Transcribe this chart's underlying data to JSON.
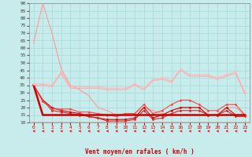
{
  "xlabel": "Vent moyen/en rafales ( km/h )",
  "xlim": [
    -0.5,
    23.5
  ],
  "ylim": [
    10,
    90
  ],
  "yticks": [
    10,
    15,
    20,
    25,
    30,
    35,
    40,
    45,
    50,
    55,
    60,
    65,
    70,
    75,
    80,
    85,
    90
  ],
  "xticks": [
    0,
    1,
    2,
    3,
    4,
    5,
    6,
    7,
    8,
    9,
    10,
    11,
    12,
    13,
    14,
    15,
    16,
    17,
    18,
    19,
    20,
    21,
    22,
    23
  ],
  "background_color": "#c8ecec",
  "grid_color": "#aadddd",
  "lines": [
    {
      "x": [
        0,
        1,
        2,
        3,
        4,
        5,
        6,
        7,
        8,
        9,
        10,
        11,
        12,
        13,
        14,
        15,
        16,
        17,
        18,
        19,
        20,
        21,
        22,
        23
      ],
      "y": [
        63,
        90,
        70,
        46,
        35,
        32,
        28,
        20,
        18,
        15,
        16,
        16,
        20,
        18,
        16,
        15,
        20,
        20,
        20,
        15,
        15,
        20,
        20,
        15
      ],
      "color": "#ff9999",
      "lw": 0.8,
      "marker": null,
      "ms": 0
    },
    {
      "x": [
        0,
        1,
        2,
        3,
        4,
        5,
        6,
        7,
        8,
        9,
        10,
        11,
        12,
        13,
        14,
        15,
        16,
        17,
        18,
        19,
        20,
        21,
        22,
        23
      ],
      "y": [
        35,
        25,
        20,
        18,
        17,
        16,
        14,
        13,
        12,
        12,
        12,
        13,
        20,
        13,
        15,
        18,
        20,
        20,
        20,
        15,
        15,
        20,
        15,
        15
      ],
      "color": "#cc0000",
      "lw": 0.8,
      "marker": "D",
      "ms": 1.5
    },
    {
      "x": [
        0,
        1,
        2,
        3,
        4,
        5,
        6,
        7,
        8,
        9,
        10,
        11,
        12,
        13,
        14,
        15,
        16,
        17,
        18,
        19,
        20,
        21,
        22,
        23
      ],
      "y": [
        35,
        25,
        18,
        17,
        16,
        15,
        14,
        13,
        11,
        11,
        11,
        12,
        18,
        12,
        13,
        16,
        18,
        18,
        18,
        15,
        15,
        18,
        14,
        14
      ],
      "color": "#dd2222",
      "lw": 0.8,
      "marker": "D",
      "ms": 1.5
    },
    {
      "x": [
        0,
        1,
        2,
        3,
        4,
        5,
        6,
        7,
        8,
        9,
        10,
        11,
        12,
        13,
        14,
        15,
        16,
        17,
        18,
        19,
        20,
        21,
        22,
        23
      ],
      "y": [
        35,
        24,
        19,
        19,
        19,
        17,
        17,
        16,
        15,
        14,
        16,
        16,
        22,
        16,
        18,
        22,
        25,
        25,
        22,
        18,
        18,
        22,
        22,
        15
      ],
      "color": "#ff4444",
      "lw": 0.8,
      "marker": "D",
      "ms": 1.5
    },
    {
      "x": [
        0,
        1,
        2,
        3,
        4,
        5,
        6,
        7,
        8,
        9,
        10,
        11,
        12,
        13,
        14,
        15,
        16,
        17,
        18,
        19,
        20,
        21,
        22,
        23
      ],
      "y": [
        35,
        15,
        15,
        15,
        15,
        15,
        15,
        15,
        15,
        15,
        15,
        15,
        15,
        15,
        15,
        15,
        15,
        15,
        15,
        15,
        15,
        15,
        15,
        15
      ],
      "color": "#cc0000",
      "lw": 1.8,
      "marker": null,
      "ms": 0
    },
    {
      "x": [
        0,
        1,
        2,
        3,
        4,
        5,
        6,
        7,
        8,
        9,
        10,
        11,
        12,
        13,
        14,
        15,
        16,
        17,
        18,
        19,
        20,
        21,
        22,
        23
      ],
      "y": [
        36,
        36,
        35,
        44,
        34,
        34,
        34,
        34,
        33,
        33,
        33,
        36,
        33,
        39,
        40,
        38,
        46,
        42,
        42,
        42,
        40,
        42,
        44,
        30
      ],
      "color": "#ffbbbb",
      "lw": 0.8,
      "marker": "D",
      "ms": 1.5
    },
    {
      "x": [
        0,
        1,
        2,
        3,
        4,
        5,
        6,
        7,
        8,
        9,
        10,
        11,
        12,
        13,
        14,
        15,
        16,
        17,
        18,
        19,
        20,
        21,
        22,
        23
      ],
      "y": [
        35,
        35,
        34,
        43,
        33,
        33,
        33,
        33,
        32,
        32,
        32,
        35,
        32,
        38,
        39,
        37,
        45,
        41,
        41,
        41,
        39,
        41,
        43,
        29
      ],
      "color": "#ffaaaa",
      "lw": 0.8,
      "marker": null,
      "ms": 0
    }
  ],
  "arrow_y_data": [
    0,
    1,
    2,
    3,
    4,
    5,
    6,
    7,
    8,
    9,
    10,
    11,
    12,
    13,
    14,
    15,
    16,
    17,
    18,
    19,
    20,
    21,
    22,
    23
  ],
  "arrow_color": "#ff0000",
  "hline_color": "#ff0000",
  "spine_color": "#888888",
  "xlabel_color": "#cc0000",
  "xlabel_fontsize": 5.5,
  "tick_fontsize": 4.5
}
